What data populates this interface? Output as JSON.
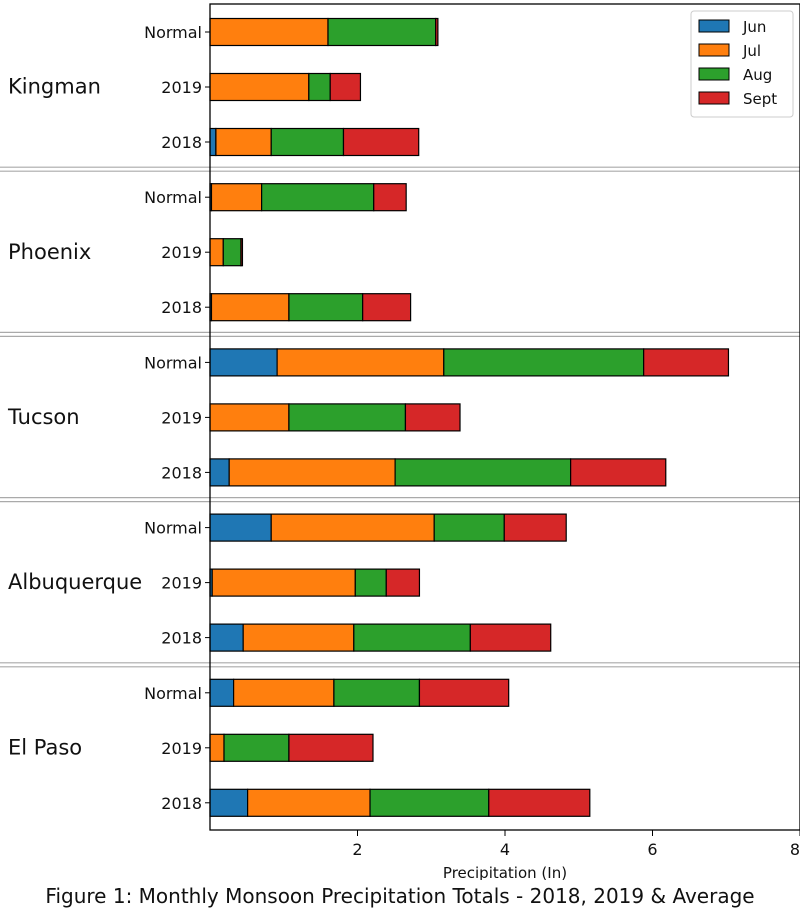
{
  "chart_data": {
    "type": "bar",
    "orientation": "horizontal",
    "stacked": true,
    "caption": "Figure 1: Monthly Monsoon Precipitation Totals - 2018, 2019 & Average",
    "xlabel": "Precipitation (In)",
    "xlim": [
      0,
      8
    ],
    "xticks": [
      "2",
      "4",
      "6",
      "8"
    ],
    "legend_position": "top-right",
    "series": [
      {
        "name": "Jun",
        "color": "#1f77b4"
      },
      {
        "name": "Jul",
        "color": "#ff7f0e"
      },
      {
        "name": "Aug",
        "color": "#2ca02c"
      },
      {
        "name": "Sept",
        "color": "#d62728"
      }
    ],
    "groups": [
      {
        "name": "Kingman",
        "bars": [
          {
            "label": "Normal",
            "values": [
              0.0,
              1.6,
              1.46,
              0.03
            ]
          },
          {
            "label": "2019",
            "values": [
              0.0,
              1.34,
              0.29,
              0.41
            ]
          },
          {
            "label": "2018",
            "values": [
              0.08,
              0.75,
              0.98,
              1.02
            ]
          }
        ]
      },
      {
        "name": "Phoenix",
        "bars": [
          {
            "label": "Normal",
            "values": [
              0.02,
              0.68,
              1.52,
              0.44
            ]
          },
          {
            "label": "2019",
            "values": [
              0.0,
              0.18,
              0.24,
              0.02
            ]
          },
          {
            "label": "2018",
            "values": [
              0.02,
              1.05,
              1.0,
              0.65
            ]
          }
        ]
      },
      {
        "name": "Tucson",
        "bars": [
          {
            "label": "Normal",
            "values": [
              0.91,
              2.26,
              2.71,
              1.15
            ]
          },
          {
            "label": "2019",
            "values": [
              0.0,
              1.07,
              1.58,
              0.74
            ]
          },
          {
            "label": "2018",
            "values": [
              0.26,
              2.25,
              2.38,
              1.29
            ]
          }
        ]
      },
      {
        "name": "Albuquerque",
        "bars": [
          {
            "label": "Normal",
            "values": [
              0.83,
              2.21,
              0.95,
              0.84
            ]
          },
          {
            "label": "2019",
            "values": [
              0.03,
              1.94,
              0.42,
              0.45
            ]
          },
          {
            "label": "2018",
            "values": [
              0.45,
              1.5,
              1.58,
              1.09
            ]
          }
        ]
      },
      {
        "name": "El Paso",
        "bars": [
          {
            "label": "Normal",
            "values": [
              0.32,
              1.36,
              1.16,
              1.21
            ]
          },
          {
            "label": "2019",
            "values": [
              0.0,
              0.19,
              0.88,
              1.14
            ]
          },
          {
            "label": "2018",
            "values": [
              0.51,
              1.66,
              1.61,
              1.37
            ]
          }
        ]
      }
    ]
  }
}
